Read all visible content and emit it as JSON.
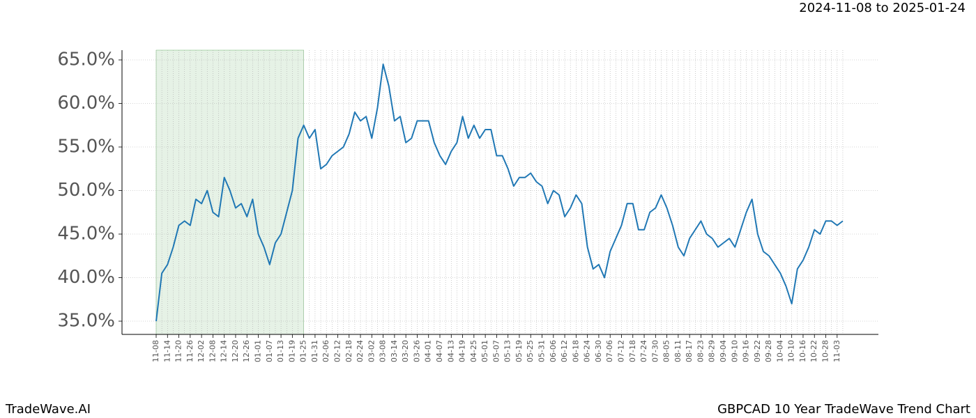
{
  "chart_data": {
    "type": "line",
    "title": "GBPCAD 10 Year TradeWave Trend Chart",
    "subtitle": "2024-11-08 to 2025-01-24",
    "brand": "TradeWave.AI",
    "categories": [
      "11-08",
      null,
      "11-14",
      null,
      "11-20",
      null,
      "11-26",
      null,
      "12-02",
      null,
      "12-08",
      null,
      "12-14",
      null,
      "12-20",
      null,
      "12-26",
      null,
      "01-01",
      null,
      "01-07",
      null,
      "01-13",
      null,
      "01-19",
      null,
      "01-25",
      null,
      "01-31",
      null,
      "02-06",
      null,
      "02-12",
      null,
      "02-18",
      null,
      "02-24",
      null,
      "03-02",
      null,
      "03-08",
      null,
      "03-14",
      null,
      "03-20",
      null,
      "03-26",
      null,
      "04-01",
      null,
      "04-07",
      null,
      "04-13",
      null,
      "04-19",
      null,
      "04-25",
      null,
      "05-01",
      null,
      "05-07",
      null,
      "05-13",
      null,
      "05-19",
      null,
      "05-25",
      null,
      "05-31",
      null,
      "06-06",
      null,
      "06-12",
      null,
      "06-18",
      null,
      "06-24",
      null,
      "06-30",
      null,
      "07-06",
      null,
      "07-12",
      null,
      "07-18",
      null,
      "07-24",
      null,
      "07-30",
      null,
      "08-05",
      null,
      "08-11",
      null,
      "08-17",
      null,
      "08-23",
      null,
      "08-29",
      null,
      "09-04",
      null,
      "09-10",
      null,
      "09-16",
      null,
      "09-22",
      null,
      "09-28",
      null,
      "10-04",
      null,
      "10-10",
      null,
      "10-16",
      null,
      "10-22",
      null,
      "10-28",
      null,
      "11-03",
      null
    ],
    "values": [
      35.0,
      40.5,
      41.5,
      43.5,
      46,
      46.5,
      46,
      49,
      48.5,
      50,
      47.5,
      47,
      51.5,
      50,
      48,
      48.5,
      47,
      49,
      45,
      43.5,
      41.5,
      44,
      45,
      47.5,
      50,
      56,
      57.5,
      56,
      57,
      52.5,
      53,
      54,
      54.5,
      55,
      56.5,
      59,
      58,
      58.5,
      56,
      59.5,
      64.5,
      62,
      58,
      58.5,
      55.5,
      56,
      58,
      58,
      58,
      55.5,
      54,
      53,
      54.5,
      55.5,
      58.5,
      56,
      57.5,
      56,
      57,
      57,
      54,
      54,
      52.5,
      50.5,
      51.5,
      51.5,
      52,
      51,
      50.5,
      48.5,
      50,
      49.5,
      47,
      48,
      49.5,
      48.5,
      43.5,
      41,
      41.5,
      40,
      43,
      44.5,
      46,
      48.5,
      48.5,
      45.5,
      45.5,
      47.5,
      48,
      49.5,
      48,
      46,
      43.5,
      42.5,
      44.5,
      45.5,
      46.5,
      45,
      44.5,
      43.5,
      44,
      44.5,
      43.5,
      45.5,
      47.5,
      49,
      45,
      43,
      42.5,
      41.5,
      40.5,
      39,
      37,
      41,
      42,
      43.5,
      45.5,
      45,
      46.5,
      46.5,
      46,
      46.5
    ],
    "color": "#1f77b4",
    "highlight_range": [
      "11-08",
      "01-25"
    ],
    "highlight_color": "#d6ead6",
    "ylim": [
      33.48,
      66.12
    ],
    "yticks": [
      {
        "value": 35,
        "label": "35.0%"
      },
      {
        "value": 40,
        "label": "40.0%"
      },
      {
        "value": 45,
        "label": "45.0%"
      },
      {
        "value": 50,
        "label": "50.0%"
      },
      {
        "value": 55,
        "label": "55.0%"
      },
      {
        "value": 60,
        "label": "60.0%"
      },
      {
        "value": 65,
        "label": "65.0%"
      }
    ],
    "grid": true
  }
}
